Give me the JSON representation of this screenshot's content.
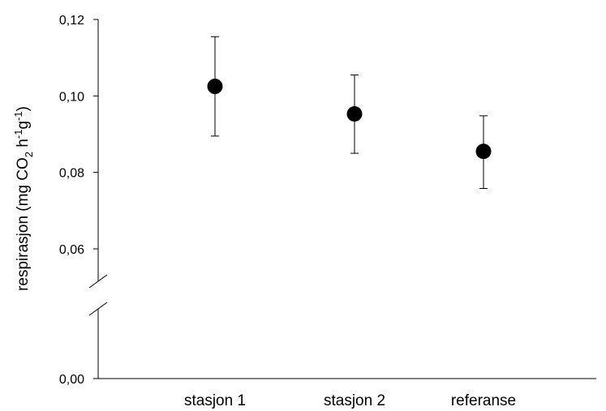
{
  "chart_data": {
    "type": "scatter",
    "categories": [
      "stasjon 1",
      "stasjon 2",
      "referanse"
    ],
    "series": [
      {
        "values": [
          0.1025,
          0.0953,
          0.0855
        ],
        "error_low": [
          0.0895,
          0.085,
          0.0758
        ],
        "error_high": [
          0.1155,
          0.1055,
          0.0948
        ]
      }
    ],
    "ylabel": {
      "prefix": "respirasjon (mg CO",
      "sub2": "2",
      "h": " h",
      "sup1": "-1",
      "g": "g",
      "sup2": "-1",
      "suffix": ")"
    },
    "yticks": [
      "0,12",
      "0,10",
      "0,08",
      "0,06",
      "0,00"
    ],
    "ytick_values": [
      0.12,
      0.1,
      0.08,
      0.06,
      0.0
    ],
    "ylim_upper": [
      0.05,
      0.12
    ],
    "axis_break": true,
    "grid": false,
    "legend": "none"
  }
}
